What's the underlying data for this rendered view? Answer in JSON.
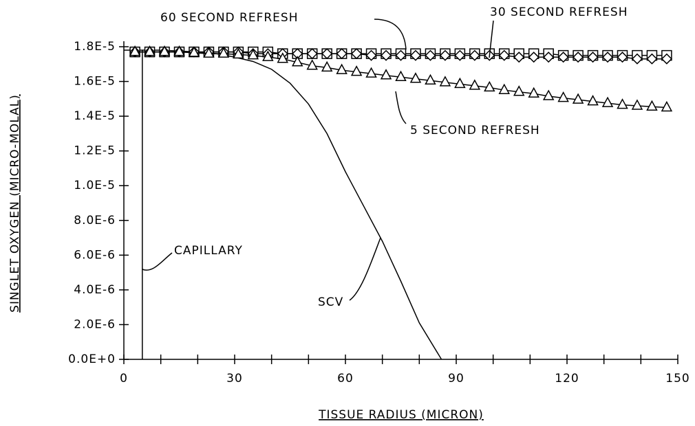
{
  "chart_data": {
    "type": "line",
    "xlabel": "TISSUE RADIUS (MICRON)",
    "ylabel": "SINGLET OXYGEN (MICRO-MOLAL)",
    "xlim": [
      0,
      150
    ],
    "ylim": [
      0,
      1.8e-05
    ],
    "xticks": [
      0,
      30,
      60,
      90,
      120,
      150
    ],
    "xminorticks": [
      10,
      20,
      40,
      50,
      70,
      80,
      100,
      110,
      130,
      140
    ],
    "yticks": [
      {
        "value": 0,
        "label": "0.0E+0"
      },
      {
        "value": 2e-06,
        "label": "2.0E-6"
      },
      {
        "value": 4e-06,
        "label": "4.0E-6"
      },
      {
        "value": 6e-06,
        "label": "6.0E-6"
      },
      {
        "value": 8e-06,
        "label": "8.0E-6"
      },
      {
        "value": 1e-05,
        "label": "1.0E-5"
      },
      {
        "value": 1.2e-05,
        "label": "1.2E-5"
      },
      {
        "value": 1.4e-05,
        "label": "1.4E-5"
      },
      {
        "value": 1.6e-05,
        "label": "1.6E-5"
      },
      {
        "value": 1.8e-05,
        "label": "1.8E-5"
      }
    ],
    "series": [
      {
        "name": "CAPILLARY",
        "color": "#000000",
        "marker": "none",
        "x": [
          0,
          5,
          5
        ],
        "values": [
          1.78e-05,
          1.78e-05,
          0
        ]
      },
      {
        "name": "SCV",
        "color": "#000000",
        "marker": "none",
        "x": [
          5,
          10,
          15,
          20,
          25,
          30,
          35,
          40,
          45,
          50,
          55,
          60,
          65,
          70,
          75,
          80,
          86
        ],
        "values": [
          1.78e-05,
          1.78e-05,
          1.775e-05,
          1.77e-05,
          1.76e-05,
          1.74e-05,
          1.715e-05,
          1.67e-05,
          1.59e-05,
          1.47e-05,
          1.3e-05,
          1.08e-05,
          8.8e-06,
          6.8e-06,
          4.5e-06,
          2.1e-06,
          0
        ]
      },
      {
        "name": "60 SECOND REFRESH",
        "color": "#000000",
        "marker": "square",
        "x": [
          3,
          7,
          11,
          15,
          19,
          23,
          27,
          31,
          35,
          39,
          43,
          47,
          51,
          55,
          59,
          63,
          67,
          71,
          75,
          79,
          83,
          87,
          91,
          95,
          99,
          103,
          107,
          111,
          115,
          119,
          123,
          127,
          131,
          135,
          139,
          143,
          147
        ],
        "values": [
          1.77e-05,
          1.77e-05,
          1.77e-05,
          1.77e-05,
          1.77e-05,
          1.77e-05,
          1.77e-05,
          1.77e-05,
          1.77e-05,
          1.77e-05,
          1.76e-05,
          1.76e-05,
          1.76e-05,
          1.76e-05,
          1.76e-05,
          1.76e-05,
          1.76e-05,
          1.76e-05,
          1.76e-05,
          1.76e-05,
          1.76e-05,
          1.76e-05,
          1.76e-05,
          1.76e-05,
          1.76e-05,
          1.76e-05,
          1.76e-05,
          1.76e-05,
          1.76e-05,
          1.75e-05,
          1.75e-05,
          1.75e-05,
          1.75e-05,
          1.75e-05,
          1.75e-05,
          1.75e-05,
          1.75e-05
        ]
      },
      {
        "name": "30 SECOND REFRESH",
        "color": "#000000",
        "marker": "diamond",
        "x": [
          3,
          7,
          11,
          15,
          19,
          23,
          27,
          31,
          35,
          39,
          43,
          47,
          51,
          55,
          59,
          63,
          67,
          71,
          75,
          79,
          83,
          87,
          91,
          95,
          99,
          103,
          107,
          111,
          115,
          119,
          123,
          127,
          131,
          135,
          139,
          143,
          147
        ],
        "values": [
          1.77e-05,
          1.77e-05,
          1.77e-05,
          1.77e-05,
          1.77e-05,
          1.77e-05,
          1.77e-05,
          1.77e-05,
          1.76e-05,
          1.76e-05,
          1.76e-05,
          1.76e-05,
          1.76e-05,
          1.76e-05,
          1.76e-05,
          1.76e-05,
          1.75e-05,
          1.75e-05,
          1.75e-05,
          1.75e-05,
          1.75e-05,
          1.75e-05,
          1.75e-05,
          1.75e-05,
          1.75e-05,
          1.75e-05,
          1.74e-05,
          1.74e-05,
          1.74e-05,
          1.74e-05,
          1.74e-05,
          1.74e-05,
          1.74e-05,
          1.74e-05,
          1.73e-05,
          1.73e-05,
          1.73e-05
        ]
      },
      {
        "name": "5 SECOND REFRESH",
        "color": "#000000",
        "marker": "triangle",
        "x": [
          3,
          7,
          11,
          15,
          19,
          23,
          27,
          31,
          35,
          39,
          43,
          47,
          51,
          55,
          59,
          63,
          67,
          71,
          75,
          79,
          83,
          87,
          91,
          95,
          99,
          103,
          107,
          111,
          115,
          119,
          123,
          127,
          131,
          135,
          139,
          143,
          147
        ],
        "values": [
          1.77e-05,
          1.77e-05,
          1.77e-05,
          1.77e-05,
          1.765e-05,
          1.76e-05,
          1.76e-05,
          1.755e-05,
          1.75e-05,
          1.74e-05,
          1.73e-05,
          1.71e-05,
          1.69e-05,
          1.68e-05,
          1.665e-05,
          1.655e-05,
          1.645e-05,
          1.635e-05,
          1.625e-05,
          1.615e-05,
          1.605e-05,
          1.595e-05,
          1.585e-05,
          1.575e-05,
          1.565e-05,
          1.55e-05,
          1.54e-05,
          1.53e-05,
          1.515e-05,
          1.505e-05,
          1.495e-05,
          1.485e-05,
          1.475e-05,
          1.465e-05,
          1.46e-05,
          1.455e-05,
          1.45e-05
        ]
      }
    ]
  }
}
